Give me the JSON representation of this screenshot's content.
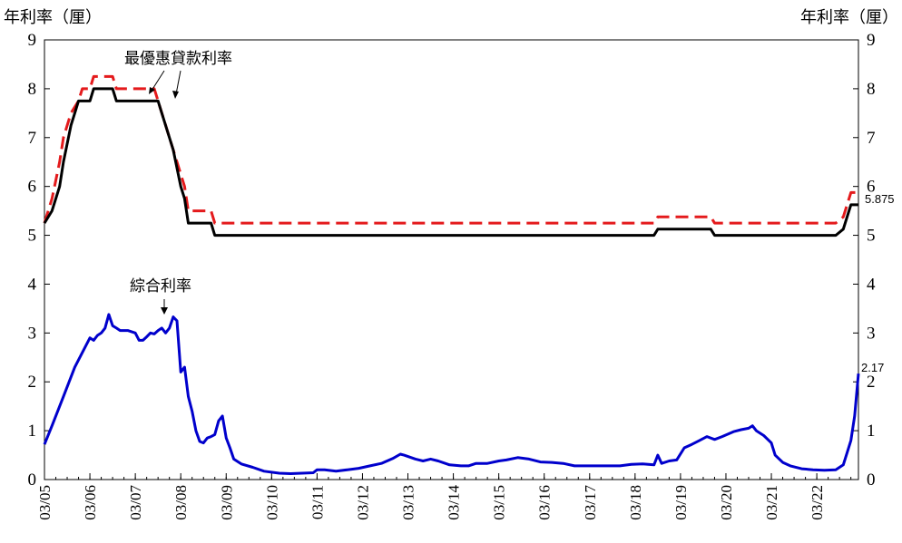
{
  "chart_data": {
    "type": "line",
    "title": "",
    "ylabel_left": "年利率（厘）",
    "ylabel_right": "年利率（厘）",
    "ylim": [
      0,
      9
    ],
    "yticks": [
      "0",
      "1",
      "2",
      "3",
      "4",
      "5",
      "6",
      "7",
      "8",
      "9"
    ],
    "xlim": [
      "2005-01",
      "2022-12"
    ],
    "xticks": [
      {
        "label": "03/05",
        "x": "2005-01"
      },
      {
        "label": "03/06",
        "x": "2006-01"
      },
      {
        "label": "03/07",
        "x": "2007-01"
      },
      {
        "label": "03/08",
        "x": "2008-01"
      },
      {
        "label": "03/09",
        "x": "2009-01"
      },
      {
        "label": "03/10",
        "x": "2010-01"
      },
      {
        "label": "03/11",
        "x": "2011-01"
      },
      {
        "label": "03/12",
        "x": "2012-01"
      },
      {
        "label": "03/13",
        "x": "2013-01"
      },
      {
        "label": "03/14",
        "x": "2014-01"
      },
      {
        "label": "03/15",
        "x": "2015-01"
      },
      {
        "label": "03/16",
        "x": "2016-01"
      },
      {
        "label": "03/17",
        "x": "2017-01"
      },
      {
        "label": "03/18",
        "x": "2018-01"
      },
      {
        "label": "03/19",
        "x": "2019-01"
      },
      {
        "label": "03/20",
        "x": "2020-01"
      },
      {
        "label": "03/21",
        "x": "2021-01"
      },
      {
        "label": "03/22",
        "x": "2022-01"
      }
    ],
    "grid": false,
    "annotations": [
      {
        "text": "最優惠貸款利率"
      },
      {
        "text": "綜合利率"
      },
      {
        "text": "5.875"
      },
      {
        "text": "2.17"
      }
    ],
    "series": [
      {
        "color": "#e41a1c",
        "dash": "dashed",
        "points": [
          [
            "2005-01",
            5.25
          ],
          [
            "2005-03",
            5.75
          ],
          [
            "2005-05",
            6.5
          ],
          [
            "2005-06",
            7.0
          ],
          [
            "2005-08",
            7.5
          ],
          [
            "2005-10",
            7.75
          ],
          [
            "2005-11",
            8.0
          ],
          [
            "2006-01",
            8.0
          ],
          [
            "2006-02",
            8.25
          ],
          [
            "2006-07",
            8.25
          ],
          [
            "2006-08",
            8.0
          ],
          [
            "2007-06",
            8.0
          ],
          [
            "2007-07",
            7.75
          ],
          [
            "2007-10",
            7.0
          ],
          [
            "2007-11",
            6.75
          ],
          [
            "2008-01",
            6.25
          ],
          [
            "2008-02",
            6.0
          ],
          [
            "2008-03",
            5.5
          ],
          [
            "2008-09",
            5.5
          ],
          [
            "2008-10",
            5.25
          ],
          [
            "2018-06",
            5.25
          ],
          [
            "2018-07",
            5.375
          ],
          [
            "2019-09",
            5.375
          ],
          [
            "2019-10",
            5.25
          ],
          [
            "2022-06",
            5.25
          ],
          [
            "2022-08",
            5.375
          ],
          [
            "2022-09",
            5.625
          ],
          [
            "2022-10",
            5.875
          ],
          [
            "2022-12",
            5.875
          ]
        ]
      },
      {
        "color": "#000000",
        "dash": "solid",
        "points": [
          [
            "2005-01",
            5.25
          ],
          [
            "2005-03",
            5.5
          ],
          [
            "2005-05",
            6.0
          ],
          [
            "2005-06",
            6.5
          ],
          [
            "2005-08",
            7.25
          ],
          [
            "2005-09",
            7.5
          ],
          [
            "2005-10",
            7.75
          ],
          [
            "2006-01",
            7.75
          ],
          [
            "2006-02",
            8.0
          ],
          [
            "2006-07",
            8.0
          ],
          [
            "2006-08",
            7.75
          ],
          [
            "2007-07",
            7.75
          ],
          [
            "2007-08",
            7.5
          ],
          [
            "2007-10",
            7.0
          ],
          [
            "2007-11",
            6.75
          ],
          [
            "2008-01",
            6.0
          ],
          [
            "2008-02",
            5.75
          ],
          [
            "2008-03",
            5.25
          ],
          [
            "2008-09",
            5.25
          ],
          [
            "2008-10",
            5.0
          ],
          [
            "2018-06",
            5.0
          ],
          [
            "2018-07",
            5.125
          ],
          [
            "2019-09",
            5.125
          ],
          [
            "2019-10",
            5.0
          ],
          [
            "2022-06",
            5.0
          ],
          [
            "2022-08",
            5.125
          ],
          [
            "2022-09",
            5.375
          ],
          [
            "2022-10",
            5.625
          ],
          [
            "2022-12",
            5.625
          ]
        ]
      },
      {
        "color": "#0000cc",
        "dash": "solid",
        "points": [
          [
            "2005-01",
            0.72
          ],
          [
            "2005-03",
            1.1
          ],
          [
            "2005-06",
            1.7
          ],
          [
            "2005-09",
            2.3
          ],
          [
            "2005-12",
            2.75
          ],
          [
            "2006-01",
            2.9
          ],
          [
            "2006-02",
            2.85
          ],
          [
            "2006-03",
            2.95
          ],
          [
            "2006-04",
            3.0
          ],
          [
            "2006-05",
            3.1
          ],
          [
            "2006-06",
            3.38
          ],
          [
            "2006-07",
            3.15
          ],
          [
            "2006-08",
            3.1
          ],
          [
            "2006-09",
            3.05
          ],
          [
            "2006-11",
            3.05
          ],
          [
            "2007-01",
            3.0
          ],
          [
            "2007-02",
            2.85
          ],
          [
            "2007-03",
            2.85
          ],
          [
            "2007-04",
            2.92
          ],
          [
            "2007-05",
            3.0
          ],
          [
            "2007-06",
            2.98
          ],
          [
            "2007-07",
            3.05
          ],
          [
            "2007-08",
            3.1
          ],
          [
            "2007-09",
            3.0
          ],
          [
            "2007-10",
            3.1
          ],
          [
            "2007-11",
            3.33
          ],
          [
            "2007-12",
            3.25
          ],
          [
            "2008-01",
            2.2
          ],
          [
            "2008-02",
            2.3
          ],
          [
            "2008-03",
            1.7
          ],
          [
            "2008-04",
            1.4
          ],
          [
            "2008-05",
            1.0
          ],
          [
            "2008-06",
            0.78
          ],
          [
            "2008-07",
            0.75
          ],
          [
            "2008-08",
            0.85
          ],
          [
            "2008-09",
            0.88
          ],
          [
            "2008-10",
            0.92
          ],
          [
            "2008-11",
            1.2
          ],
          [
            "2008-12",
            1.3
          ],
          [
            "2009-01",
            0.85
          ],
          [
            "2009-02",
            0.65
          ],
          [
            "2009-03",
            0.42
          ],
          [
            "2009-05",
            0.32
          ],
          [
            "2009-08",
            0.25
          ],
          [
            "2009-11",
            0.17
          ],
          [
            "2010-03",
            0.13
          ],
          [
            "2010-06",
            0.12
          ],
          [
            "2010-09",
            0.13
          ],
          [
            "2010-12",
            0.14
          ],
          [
            "2011-01",
            0.2
          ],
          [
            "2011-03",
            0.2
          ],
          [
            "2011-06",
            0.17
          ],
          [
            "2011-09",
            0.2
          ],
          [
            "2011-12",
            0.23
          ],
          [
            "2012-03",
            0.28
          ],
          [
            "2012-06",
            0.33
          ],
          [
            "2012-09",
            0.43
          ],
          [
            "2012-11",
            0.52
          ],
          [
            "2012-12",
            0.5
          ],
          [
            "2013-03",
            0.42
          ],
          [
            "2013-05",
            0.38
          ],
          [
            "2013-07",
            0.42
          ],
          [
            "2013-09",
            0.38
          ],
          [
            "2013-12",
            0.3
          ],
          [
            "2014-03",
            0.28
          ],
          [
            "2014-05",
            0.28
          ],
          [
            "2014-07",
            0.33
          ],
          [
            "2014-10",
            0.33
          ],
          [
            "2015-01",
            0.38
          ],
          [
            "2015-03",
            0.4
          ],
          [
            "2015-06",
            0.45
          ],
          [
            "2015-09",
            0.42
          ],
          [
            "2015-12",
            0.36
          ],
          [
            "2016-03",
            0.35
          ],
          [
            "2016-06",
            0.33
          ],
          [
            "2016-09",
            0.28
          ],
          [
            "2016-12",
            0.28
          ],
          [
            "2017-03",
            0.28
          ],
          [
            "2017-06",
            0.28
          ],
          [
            "2017-09",
            0.28
          ],
          [
            "2017-12",
            0.31
          ],
          [
            "2018-03",
            0.32
          ],
          [
            "2018-06",
            0.3
          ],
          [
            "2018-07",
            0.5
          ],
          [
            "2018-08",
            0.33
          ],
          [
            "2018-10",
            0.38
          ],
          [
            "2018-12",
            0.4
          ],
          [
            "2019-02",
            0.65
          ],
          [
            "2019-04",
            0.72
          ],
          [
            "2019-06",
            0.8
          ],
          [
            "2019-08",
            0.88
          ],
          [
            "2019-10",
            0.82
          ],
          [
            "2019-12",
            0.88
          ],
          [
            "2020-03",
            0.98
          ],
          [
            "2020-05",
            1.02
          ],
          [
            "2020-07",
            1.05
          ],
          [
            "2020-08",
            1.1
          ],
          [
            "2020-09",
            1.0
          ],
          [
            "2020-11",
            0.9
          ],
          [
            "2021-01",
            0.75
          ],
          [
            "2021-02",
            0.5
          ],
          [
            "2021-04",
            0.35
          ],
          [
            "2021-06",
            0.28
          ],
          [
            "2021-09",
            0.22
          ],
          [
            "2021-12",
            0.2
          ],
          [
            "2022-03",
            0.19
          ],
          [
            "2022-06",
            0.2
          ],
          [
            "2022-08",
            0.3
          ],
          [
            "2022-09",
            0.55
          ],
          [
            "2022-10",
            0.8
          ],
          [
            "2022-11",
            1.3
          ],
          [
            "2022-12",
            2.17
          ]
        ]
      }
    ]
  }
}
